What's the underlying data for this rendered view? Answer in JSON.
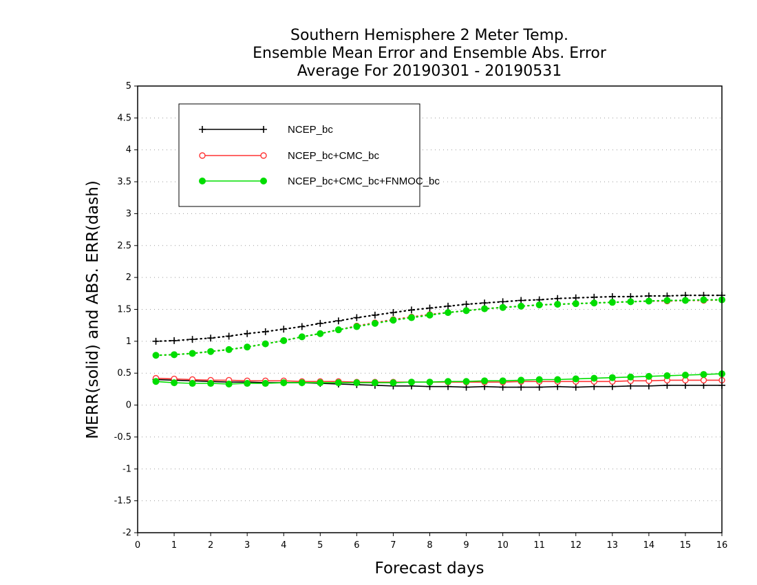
{
  "chart_data": {
    "type": "line",
    "title": [
      "Southern Hemisphere 2 Meter Temp.",
      "Ensemble Mean Error and Ensemble Abs. Error",
      "Average For 20190301 - 20190531"
    ],
    "xlabel": "Forecast days",
    "ylabel": "MERR(solid) and ABS. ERR(dash)",
    "xlim": [
      0,
      16
    ],
    "ylim": [
      -2,
      5
    ],
    "xticks": [
      "0",
      "1",
      "2",
      "3",
      "4",
      "5",
      "6",
      "7",
      "8",
      "9",
      "10",
      "11",
      "12",
      "13",
      "14",
      "15",
      "16"
    ],
    "yticks": [
      "-2",
      "-1.5",
      "-1",
      "-0.5",
      "0",
      "0.5",
      "1",
      "1.5",
      "2",
      "2.5",
      "3",
      "3.5",
      "4",
      "4.5",
      "5"
    ],
    "grid": "horizontal-dotted",
    "legend_position": "top-left",
    "x": [
      0.5,
      1,
      1.5,
      2,
      2.5,
      3,
      3.5,
      4,
      4.5,
      5,
      5.5,
      6,
      6.5,
      7,
      7.5,
      8,
      8.5,
      9,
      9.5,
      10,
      10.5,
      11,
      11.5,
      12,
      12.5,
      13,
      13.5,
      14,
      14.5,
      15,
      15.5,
      16
    ],
    "series": [
      {
        "name": "NCEP_bc",
        "color": "#000000",
        "marker": "plus",
        "merr": [
          0.4,
          0.39,
          0.38,
          0.37,
          0.36,
          0.36,
          0.35,
          0.35,
          0.35,
          0.34,
          0.33,
          0.32,
          0.31,
          0.3,
          0.3,
          0.29,
          0.29,
          0.28,
          0.29,
          0.28,
          0.28,
          0.28,
          0.29,
          0.28,
          0.29,
          0.29,
          0.3,
          0.3,
          0.31,
          0.31,
          0.31,
          0.31
        ],
        "abs_err": [
          1.0,
          1.01,
          1.03,
          1.05,
          1.08,
          1.12,
          1.15,
          1.19,
          1.23,
          1.28,
          1.32,
          1.37,
          1.41,
          1.45,
          1.49,
          1.52,
          1.55,
          1.58,
          1.6,
          1.62,
          1.64,
          1.65,
          1.67,
          1.68,
          1.69,
          1.7,
          1.7,
          1.71,
          1.71,
          1.72,
          1.72,
          1.72
        ]
      },
      {
        "name": "NCEP_bc+CMC_bc",
        "color": "#ff3333",
        "marker": "open-circle",
        "merr": [
          0.42,
          0.41,
          0.4,
          0.39,
          0.39,
          0.38,
          0.38,
          0.38,
          0.37,
          0.37,
          0.37,
          0.36,
          0.36,
          0.36,
          0.36,
          0.36,
          0.36,
          0.36,
          0.36,
          0.36,
          0.37,
          0.37,
          0.37,
          0.37,
          0.37,
          0.37,
          0.38,
          0.38,
          0.39,
          0.39,
          0.39,
          0.39
        ],
        "abs_err": [
          0.78,
          0.79,
          0.81,
          0.84,
          0.87,
          0.91,
          0.96,
          1.01,
          1.07,
          1.12,
          1.18,
          1.24,
          1.29,
          1.34,
          1.38,
          1.42,
          1.45,
          1.48,
          1.51,
          1.53,
          1.55,
          1.57,
          1.58,
          1.59,
          1.6,
          1.61,
          1.62,
          1.63,
          1.63,
          1.64,
          1.64,
          1.65
        ]
      },
      {
        "name": "NCEP_bc+CMC_bc+FNMOC_bc",
        "color": "#00dd00",
        "marker": "filled-circle",
        "merr": [
          0.37,
          0.35,
          0.34,
          0.34,
          0.33,
          0.34,
          0.34,
          0.35,
          0.35,
          0.35,
          0.35,
          0.35,
          0.35,
          0.35,
          0.36,
          0.36,
          0.37,
          0.37,
          0.38,
          0.38,
          0.39,
          0.4,
          0.4,
          0.41,
          0.42,
          0.43,
          0.44,
          0.45,
          0.46,
          0.47,
          0.48,
          0.49
        ],
        "abs_err": [
          0.78,
          0.79,
          0.81,
          0.84,
          0.87,
          0.91,
          0.96,
          1.01,
          1.07,
          1.12,
          1.18,
          1.23,
          1.28,
          1.33,
          1.37,
          1.41,
          1.45,
          1.48,
          1.51,
          1.53,
          1.55,
          1.57,
          1.58,
          1.59,
          1.6,
          1.61,
          1.62,
          1.63,
          1.64,
          1.64,
          1.65,
          1.65
        ]
      }
    ]
  }
}
